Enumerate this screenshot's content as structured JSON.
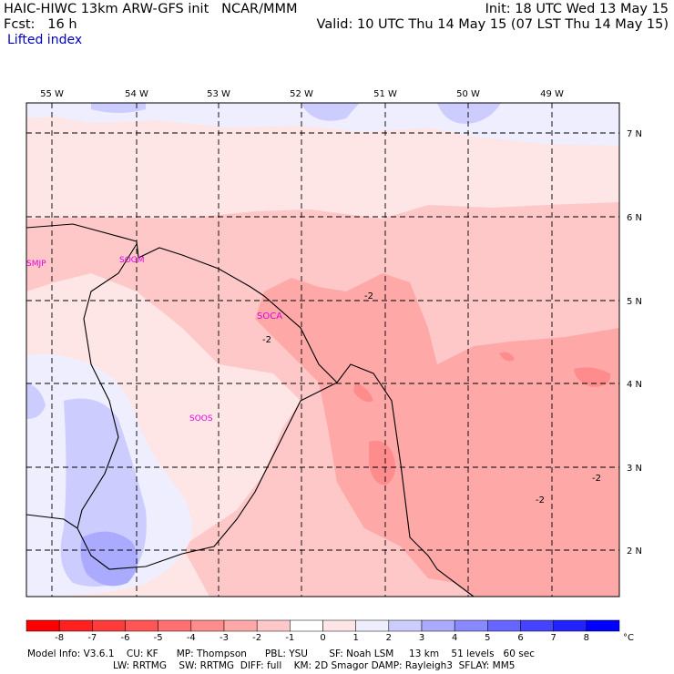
{
  "header": {
    "title_line1": "HAIC-HIWC 13km ARW-GFS init   NCAR/MMM",
    "fcst_line": "Fcst:   16 h",
    "field": "Lifted index",
    "init": "Init: 18 UTC Wed 13 May 15",
    "valid": "Valid: 10 UTC Thu 14 May 15 (07 LST Thu 14 May 15)"
  },
  "map": {
    "lon_labels": [
      "55 W",
      "54 W",
      "53 W",
      "52 W",
      "51 W",
      "50 W",
      "49 W"
    ],
    "lat_labels": [
      "7 N",
      "6 N",
      "5 N",
      "4 N",
      "3 N",
      "2 N"
    ],
    "stations": [
      "SMJP",
      "SOGM",
      "SOCA",
      "SOOS"
    ],
    "contour_labels": [
      "-2",
      "-2",
      "-2",
      "-2"
    ]
  },
  "colorbar": {
    "ticks": [
      "-8",
      "-7",
      "-6",
      "-5",
      "-4",
      "-3",
      "-2",
      "-1",
      "0",
      "1",
      "2",
      "3",
      "4",
      "5",
      "6",
      "7",
      "8"
    ],
    "unit": "°C",
    "colors": [
      "#ff0000",
      "#ff2020",
      "#ff3a3a",
      "#ff5555",
      "#ff7070",
      "#ff8c8c",
      "#ffa8a8",
      "#ffc8c8",
      "#ffe6e6",
      "#eeeeff",
      "#ccccff",
      "#aaaaff",
      "#8888ff",
      "#6666ff",
      "#4444ff",
      "#2222ff",
      "#0000ff"
    ]
  },
  "footer": {
    "line1": "Model Info: V3.6.1    CU: KF      MP: Thompson      PBL: YSU       SF: Noah LSM     13 km    51 levels   60 sec",
    "line2": "LW: RRTMG    SW: RRTMG  DIFF: full    KM: 2D Smagor DAMP: Rayleigh3  SFLAY: MM5"
  }
}
